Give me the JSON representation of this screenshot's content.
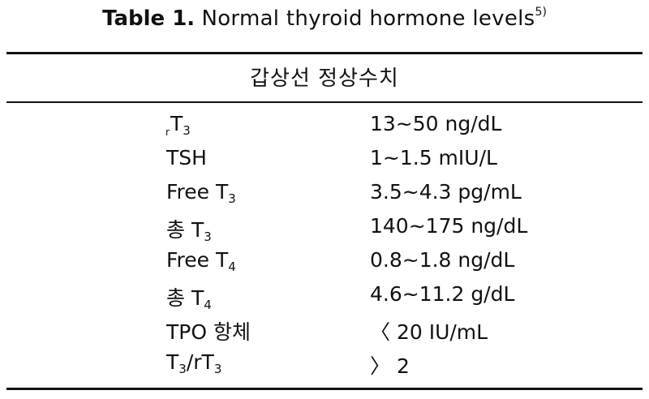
{
  "caption": {
    "label": "Table 1.",
    "title": "Normal thyroid hormone levels",
    "ref": "5)"
  },
  "header": "갑상선 정상수치",
  "rows": [
    {
      "prefix": "r",
      "name": "T",
      "sub": "3",
      "suffix": "",
      "suffix_sub": "",
      "value": "13~50 ng/dL"
    },
    {
      "prefix": "",
      "name": "TSH",
      "sub": "",
      "suffix": "",
      "suffix_sub": "",
      "value": "1~1.5 mIU/L"
    },
    {
      "prefix": "",
      "name": "Free T",
      "sub": "3",
      "suffix": "",
      "suffix_sub": "",
      "value": "3.5~4.3 pg/mL"
    },
    {
      "prefix": "",
      "name": "총 T",
      "sub": "3",
      "suffix": "",
      "suffix_sub": "",
      "value": "140~175 ng/dL"
    },
    {
      "prefix": "",
      "name": "Free T",
      "sub": "4",
      "suffix": "",
      "suffix_sub": "",
      "value": "0.8~1.8 ng/dL"
    },
    {
      "prefix": "",
      "name": "총 T",
      "sub": "4",
      "suffix": "",
      "suffix_sub": "",
      "value": "4.6~11.2 g/dL"
    },
    {
      "prefix": "",
      "name": "TPO 항체",
      "sub": "",
      "suffix": "",
      "suffix_sub": "",
      "value": "〈 20 IU/mL"
    },
    {
      "prefix": "",
      "name": "T",
      "sub": "3",
      "suffix": "/rT",
      "suffix_sub": "3",
      "value": "〉 2"
    }
  ]
}
